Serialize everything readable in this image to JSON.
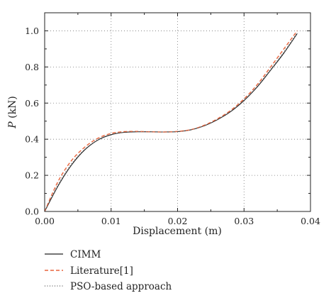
{
  "chart_data": {
    "type": "line",
    "xlabel": "Displacement (m)",
    "ylabel_italic": "P",
    "ylabel_rest": " (kN)",
    "xlim": [
      0,
      0.04
    ],
    "ylim": [
      0,
      1.1
    ],
    "x_ticks": [
      "0.00",
      "0.01",
      "0.02",
      "0.03",
      "0.04"
    ],
    "y_ticks": [
      "0.0",
      "0.2",
      "0.4",
      "0.6",
      "0.8",
      "1.0"
    ],
    "grid": true,
    "legend_position": "below",
    "series": [
      {
        "name": "CIMM",
        "color": "#222222",
        "style": "solid",
        "x": [
          0,
          0.002,
          0.004,
          0.006,
          0.008,
          0.01,
          0.012,
          0.014,
          0.016,
          0.018,
          0.02,
          0.022,
          0.024,
          0.026,
          0.028,
          0.03,
          0.032,
          0.034,
          0.036,
          0.038
        ],
        "y": [
          0,
          0.14,
          0.255,
          0.34,
          0.395,
          0.425,
          0.438,
          0.441,
          0.441,
          0.44,
          0.442,
          0.452,
          0.474,
          0.508,
          0.553,
          0.614,
          0.69,
          0.782,
          0.877,
          0.985
        ]
      },
      {
        "name": "Literature[1]",
        "color": "#e8643c",
        "style": "dashed",
        "x": [
          0,
          0.002,
          0.004,
          0.006,
          0.008,
          0.01,
          0.012,
          0.014,
          0.016,
          0.018,
          0.02,
          0.022,
          0.024,
          0.026,
          0.028,
          0.03,
          0.032,
          0.034,
          0.036,
          0.038
        ],
        "y": [
          0,
          0.165,
          0.28,
          0.355,
          0.405,
          0.432,
          0.442,
          0.443,
          0.441,
          0.44,
          0.443,
          0.453,
          0.477,
          0.513,
          0.56,
          0.623,
          0.703,
          0.8,
          0.9,
          1.0
        ]
      },
      {
        "name": "PSO-based approach",
        "color": "#555555",
        "style": "dotted",
        "x": [
          0,
          0.002,
          0.004,
          0.006,
          0.008,
          0.01,
          0.012,
          0.014,
          0.016,
          0.018,
          0.02,
          0.022,
          0.024,
          0.026,
          0.028,
          0.03,
          0.032,
          0.034,
          0.036,
          0.038
        ],
        "y": [
          0,
          0.148,
          0.262,
          0.343,
          0.397,
          0.427,
          0.439,
          0.442,
          0.441,
          0.44,
          0.442,
          0.452,
          0.475,
          0.509,
          0.555,
          0.617,
          0.694,
          0.787,
          0.884,
          0.99
        ]
      }
    ]
  }
}
